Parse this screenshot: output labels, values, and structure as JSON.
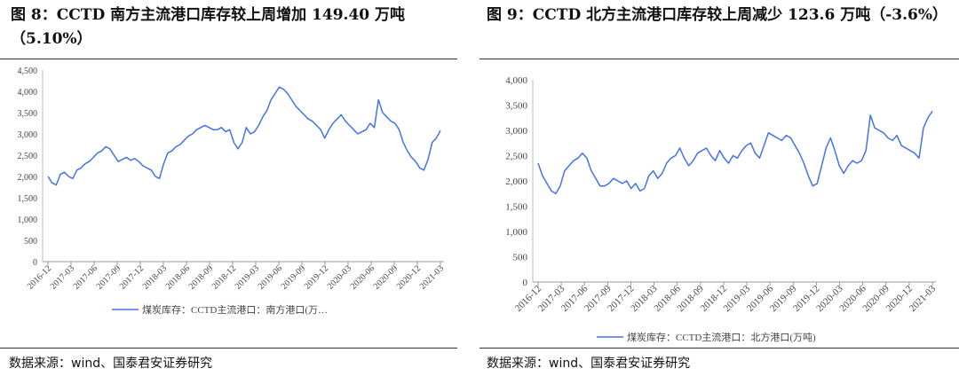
{
  "left_panel": {
    "title": "图 8：CCTD 南方主流港口库存较上周增加 149.40 万吨（5.10%）",
    "source": "数据来源：wind、国泰君安证券研究"
  },
  "right_panel": {
    "title": "图 9：CCTD 北方主流港口库存较上周减少 123.6 万吨（-3.6%）",
    "source": "数据来源：wind、国泰君安证券研究"
  },
  "chart_data": [
    {
      "type": "line",
      "title": "",
      "xlabel": "",
      "ylabel": "",
      "ylim": [
        0,
        4500
      ],
      "yticks": [
        "0",
        "500",
        "1,000",
        "1,500",
        "2,000",
        "2,500",
        "3,000",
        "3,500",
        "4,000",
        "4,500"
      ],
      "xticks": [
        "2016-12",
        "2017-03",
        "2017-06",
        "2017-09",
        "2017-12",
        "2018-03",
        "2018-06",
        "2018-09",
        "2018-12",
        "2019-03",
        "2019-06",
        "2019-09",
        "2019-12",
        "2020-03",
        "2020-06",
        "2020-09",
        "2020-12",
        "2021-03"
      ],
      "grid": false,
      "legend_position": "bottom",
      "line_color": "#4472e8",
      "series": [
        {
          "name": "煤炭库存：CCTD主流港口：南方港口(万…",
          "values": [
            2000,
            1850,
            1800,
            2050,
            2100,
            2000,
            1950,
            2150,
            2200,
            2300,
            2350,
            2450,
            2550,
            2600,
            2700,
            2650,
            2500,
            2350,
            2400,
            2450,
            2380,
            2420,
            2350,
            2250,
            2200,
            2150,
            2000,
            1950,
            2300,
            2550,
            2600,
            2700,
            2750,
            2850,
            2950,
            3000,
            3100,
            3150,
            3200,
            3150,
            3100,
            3100,
            3150,
            3050,
            3100,
            2800,
            2650,
            2800,
            3150,
            3000,
            3050,
            3200,
            3400,
            3550,
            3800,
            3950,
            4100,
            4050,
            3950,
            3800,
            3650,
            3550,
            3450,
            3350,
            3300,
            3200,
            3100,
            2900,
            3100,
            3250,
            3350,
            3450,
            3300,
            3200,
            3100,
            3000,
            3050,
            3100,
            3250,
            3150,
            3800,
            3500,
            3400,
            3300,
            3250,
            3100,
            2800,
            2600,
            2450,
            2350,
            2200,
            2150,
            2400,
            2800,
            2900,
            3080
          ]
        }
      ]
    },
    {
      "type": "line",
      "title": "",
      "xlabel": "",
      "ylabel": "",
      "ylim": [
        0,
        4000
      ],
      "yticks": [
        "0",
        "500",
        "1,000",
        "1,500",
        "2,000",
        "2,500",
        "3,000",
        "3,500",
        "4,000"
      ],
      "xticks": [
        "2016-12",
        "2017-03",
        "2017-06",
        "2017-09",
        "2017-12",
        "2018-03",
        "2018-06",
        "2018-09",
        "2018-12",
        "2019-03",
        "2019-06",
        "2019-09",
        "2019-12",
        "2020-03",
        "2020-06",
        "2020-09",
        "2020-12",
        "2021-03"
      ],
      "grid": false,
      "legend_position": "bottom",
      "line_color": "#4472e8",
      "series": [
        {
          "name": "煤炭库存：CCTD主流港口：北方港口(万吨)",
          "values": [
            2350,
            2100,
            1950,
            1800,
            1750,
            1900,
            2200,
            2300,
            2400,
            2450,
            2550,
            2450,
            2200,
            2050,
            1900,
            1900,
            1950,
            2050,
            2000,
            1950,
            2000,
            1850,
            1950,
            1800,
            1850,
            2100,
            2200,
            2050,
            2150,
            2350,
            2450,
            2500,
            2650,
            2450,
            2300,
            2400,
            2550,
            2600,
            2650,
            2500,
            2400,
            2600,
            2450,
            2350,
            2500,
            2450,
            2600,
            2700,
            2750,
            2550,
            2450,
            2700,
            2950,
            2900,
            2850,
            2800,
            2900,
            2850,
            2700,
            2550,
            2350,
            2100,
            1900,
            1950,
            2300,
            2650,
            2850,
            2600,
            2300,
            2150,
            2300,
            2400,
            2350,
            2400,
            2600,
            3300,
            3050,
            3000,
            2950,
            2850,
            2800,
            2900,
            2700,
            2650,
            2600,
            2550,
            2450,
            3050,
            3250,
            3380
          ]
        }
      ]
    }
  ]
}
